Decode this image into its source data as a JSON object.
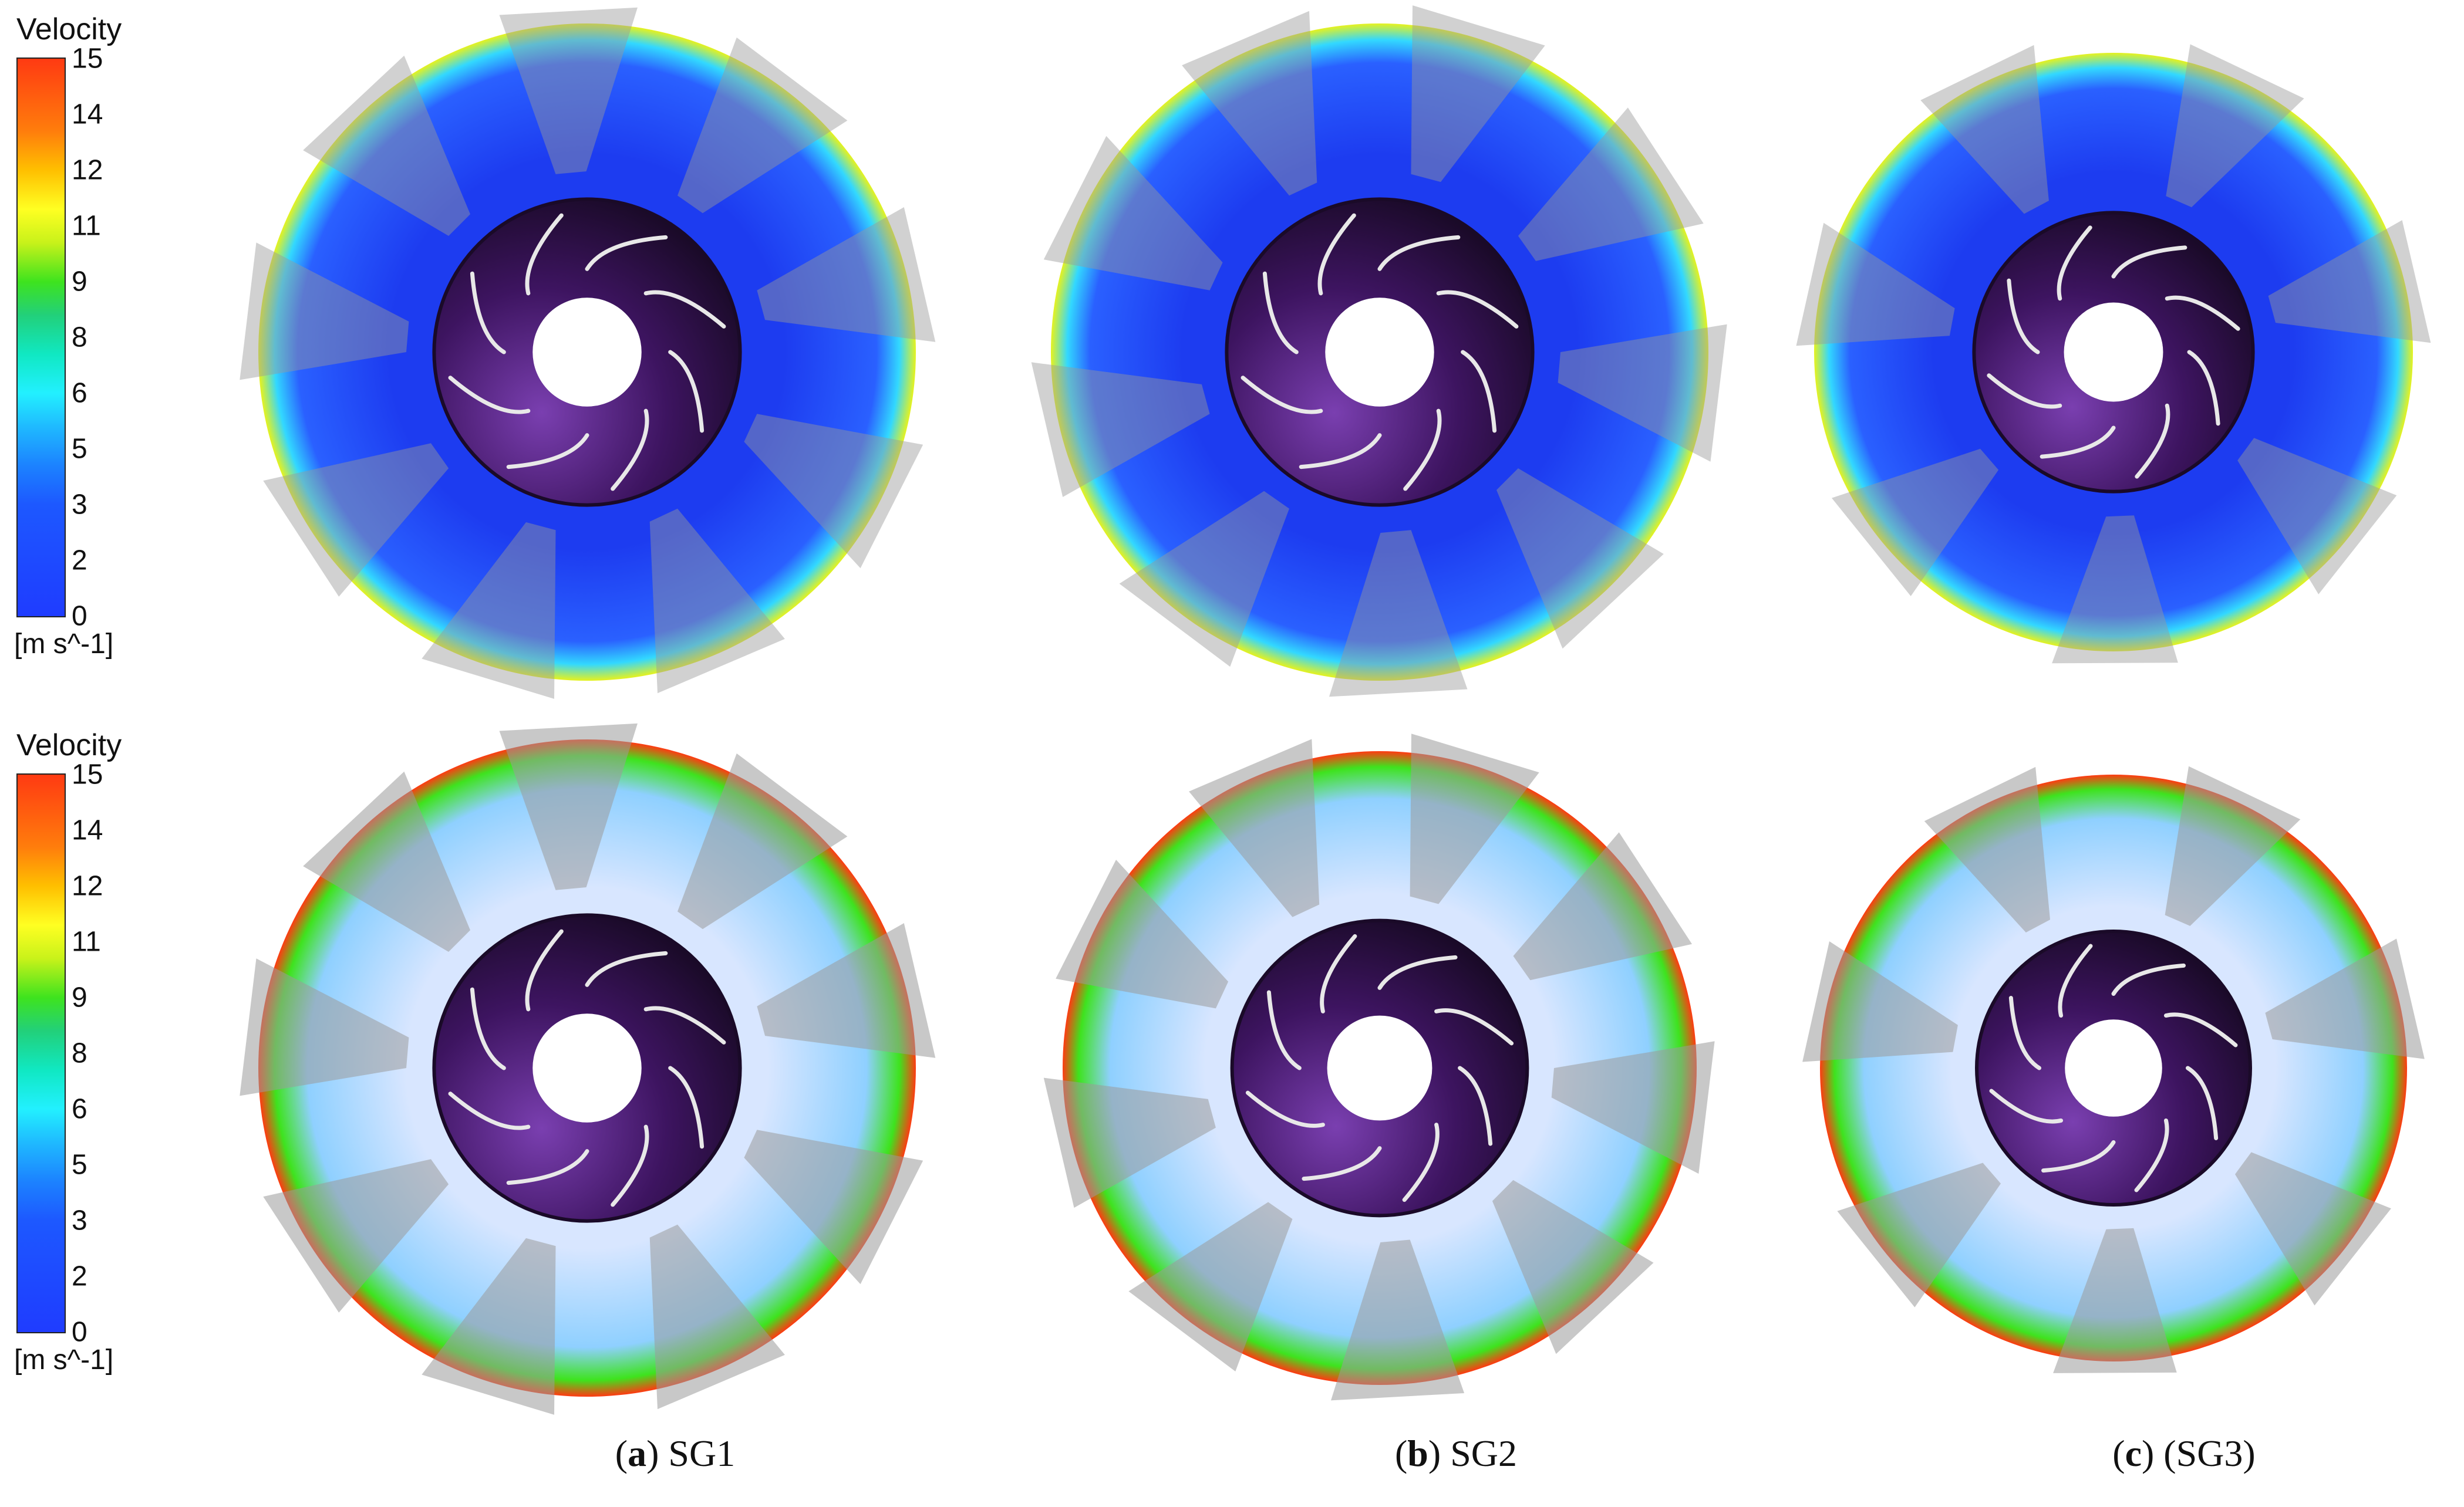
{
  "legend_top": {
    "title": "Velocity",
    "ticks": [
      "15",
      "14",
      "12",
      "11",
      "9",
      "8",
      "6",
      "5",
      "3",
      "2",
      "0"
    ],
    "unit": "[m s^-1]"
  },
  "legend_bottom": {
    "title": "Velocity",
    "ticks": [
      "15",
      "14",
      "12",
      "11",
      "9",
      "8",
      "6",
      "5",
      "3",
      "2",
      "0"
    ],
    "unit": "[m s^-1]"
  },
  "captions": [
    {
      "letter": "a",
      "text": ") SG1"
    },
    {
      "letter": "b",
      "text": ") SG2"
    },
    {
      "letter": "c",
      "text": ") (SG3)"
    }
  ],
  "colors": {
    "hub": "#3d1460",
    "hub_dark": "#1a0a28",
    "blade_highlight": "#e8e8e8",
    "vane": "#9a9a9a",
    "low_velocity": "#1f3cff",
    "high_velocity": "#ff3a12"
  }
}
